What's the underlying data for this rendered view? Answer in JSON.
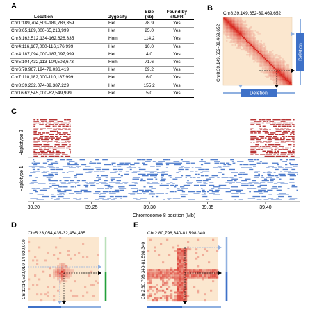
{
  "panels": {
    "A": {
      "letter": "A",
      "headers": {
        "location": "Location",
        "zygosity": "Zygosity",
        "size_line1": "Size",
        "size_line2": "(kb)",
        "found_line1": "Found by",
        "found_line2": "stLFR"
      },
      "rows": [
        {
          "location": "Chr1:189,704,509-189,783,359",
          "zygosity": "Het",
          "size": "78.9",
          "found": "Yes"
        },
        {
          "location": "Chr3:65,189,000-65,213,999",
          "zygosity": "Het",
          "size": "25.0",
          "found": "Yes"
        },
        {
          "location": "Chr3:162,512,134-162,626,335",
          "zygosity": "Hom",
          "size": "114.2",
          "found": "Yes"
        },
        {
          "location": "Chr4:116,167,000-116,176,999",
          "zygosity": "Het",
          "size": "10.0",
          "found": "Yes"
        },
        {
          "location": "Chr4:187,094,000-187,097,999",
          "zygosity": "Het",
          "size": "4.0",
          "found": "Yes"
        },
        {
          "location": "Chr5:104,432,113-104,503,673",
          "zygosity": "Hom",
          "size": "71.6",
          "found": "Yes"
        },
        {
          "location": "Chr6:78,967,194-79,036,419",
          "zygosity": "Het",
          "size": "69.2",
          "found": "Yes"
        },
        {
          "location": "Chr7:110,182,000-110,187,999",
          "zygosity": "Het",
          "size": "6.0",
          "found": "Yes"
        },
        {
          "location": "Chr8:39,232,074-39,387,229",
          "zygosity": "Het",
          "size": "155.2",
          "found": "Yes"
        },
        {
          "location": "Chr16:62,545,000-62,549,999",
          "zygosity": "Het",
          "size": "5.0",
          "found": "Yes"
        }
      ]
    },
    "B": {
      "letter": "B",
      "title": "Chr8:39,149,652-39,469,652",
      "ylabel": "Chr8:39,149,652-39,469,652",
      "deletion_label_bottom": "Deletion",
      "deletion_label_right": "Deletion"
    },
    "C": {
      "letter": "C",
      "haplotype2_label": "Haplotype 2",
      "haplotype1_label": "Haplotype 1",
      "xlabel": "Chromosome 8 position (Mb)",
      "colors": {
        "haplotype2": "#b01c1c",
        "haplotype1": "#3d6fc6"
      }
    },
    "D": {
      "letter": "D",
      "title": "Chr5:23,054,435-32,454,435",
      "ylabel": "Chr12:14,520,019-14,920,019"
    },
    "E": {
      "letter": "E",
      "title": "Chr2:80,798,340-81,598,340",
      "ylabel": "Chr2:80,798,340-81,598,340"
    }
  },
  "chart_data": {
    "type": "scatter",
    "xlabel": "Chromosome 8 position (Mb)",
    "xlim": [
      39.195,
      39.43
    ],
    "x_ticks": [
      "39.20",
      "39.25",
      "39.30",
      "39.35",
      "39.40"
    ],
    "series": [
      {
        "name": "Haplotype 2",
        "segments": [
          [
            39.2,
            39.232
          ],
          [
            39.387,
            39.425
          ]
        ],
        "color": "#b01c1c"
      },
      {
        "name": "Haplotype 1",
        "segments": [
          [
            39.196,
            39.428
          ]
        ],
        "color": "#3d6fc6"
      }
    ]
  }
}
